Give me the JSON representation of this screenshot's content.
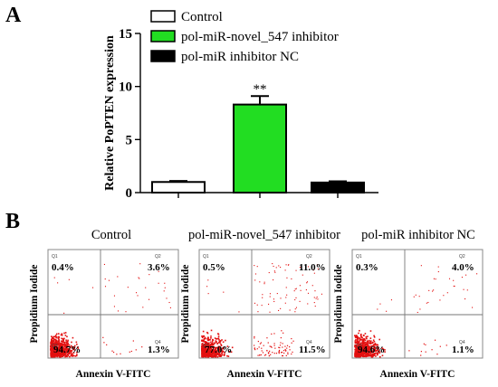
{
  "panels": {
    "a_letter": "A",
    "b_letter": "B"
  },
  "chart_data": [
    {
      "type": "bar",
      "panel": "A",
      "categories": [
        "Control",
        "pol-miR-novel_547 inhibitor",
        "pol-miR inhibitor NC"
      ],
      "values": [
        1.0,
        8.3,
        0.95
      ],
      "errors": [
        0.1,
        0.8,
        0.12
      ],
      "colors": [
        "#ffffff",
        "#22dd22",
        "#000000"
      ],
      "ylabel": "Relative PoPTEN expression",
      "ylim": [
        0,
        15
      ],
      "yticks": [
        0,
        5,
        10,
        15
      ],
      "annotation": "**",
      "annotation_index": 1,
      "legend": [
        {
          "label": "Control",
          "color": "#ffffff"
        },
        {
          "label": "pol-miR-novel_547 inhibitor",
          "color": "#22dd22"
        },
        {
          "label": "pol-miR inhibitor NC",
          "color": "#000000"
        }
      ]
    },
    {
      "type": "scatter",
      "panel": "B",
      "plots": [
        {
          "title": "Control",
          "xlabel": "Annexin V-FITC",
          "ylabel": "Propidium Iodide",
          "quadrants": {
            "Q1": "0.4%",
            "Q2": "3.6%",
            "Q3": "94.7%",
            "Q4": "1.3%"
          },
          "gate_labels": [
            "Q1",
            "Q2",
            "Q3",
            "Q4"
          ]
        },
        {
          "title": "pol-miR-novel_547 inhibitor",
          "xlabel": "Annexin V-FITC",
          "ylabel": "Propidium Iodide",
          "quadrants": {
            "Q1": "0.5%",
            "Q2": "11.0%",
            "Q3": "77.0%",
            "Q4": "11.5%"
          },
          "gate_labels": [
            "Q1",
            "Q2",
            "Q3",
            "Q4"
          ]
        },
        {
          "title": "pol-miR inhibitor NC",
          "xlabel": "Annexin V-FITC",
          "ylabel": "Propidium Iodide",
          "quadrants": {
            "Q1": "0.3%",
            "Q2": "4.0%",
            "Q3": "94.6%",
            "Q4": "1.1%"
          },
          "gate_labels": [
            "Q1",
            "Q2",
            "Q3",
            "Q4"
          ]
        }
      ],
      "dot_color": "#e31010"
    }
  ]
}
